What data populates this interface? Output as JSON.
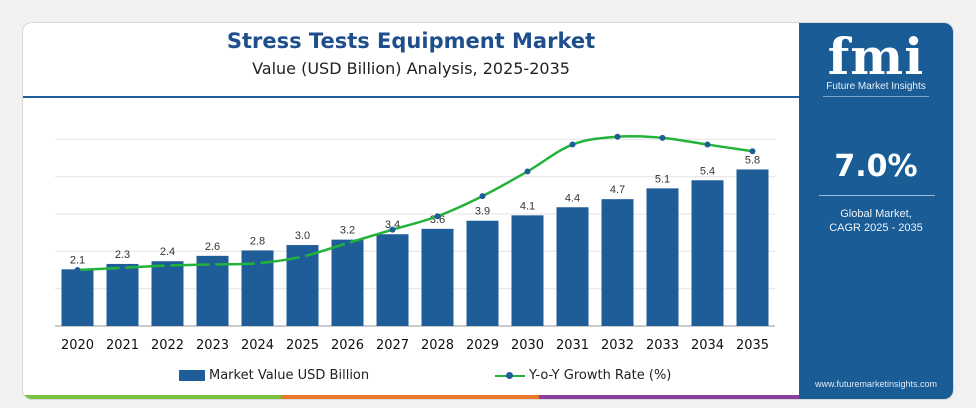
{
  "header": {
    "title": "Stress Tests Equipment Market",
    "subtitle": "Value (USD Billion) Analysis, 2025-2035"
  },
  "sidebar": {
    "logo": "fmi",
    "logo_sub": "Future Market Insights",
    "cagr_value": "7.0%",
    "cagr_label_line1": "Global Market,",
    "cagr_label_line2": "CAGR 2025 - 2035",
    "website": "www.futuremarketinsights.com",
    "color": "#1a5c96"
  },
  "legend": {
    "bar_label": "Market Value USD Billion",
    "line_label": "Y-o-Y Growth Rate (%)"
  },
  "colors": {
    "bar": "#1f5d99",
    "line": "#22b33a",
    "marker": "#1f5d99",
    "bottom_stripes": [
      "#7cc043",
      "#e8792b",
      "#8a3f9a"
    ]
  },
  "chart_data": {
    "type": "bar",
    "categories": [
      "2020",
      "2021",
      "2022",
      "2023",
      "2024",
      "2025",
      "2026",
      "2027",
      "2028",
      "2029",
      "2030",
      "2031",
      "2032",
      "2033",
      "2034",
      "2035"
    ],
    "series": [
      {
        "name": "Market Value USD Billion",
        "type": "bar",
        "values": [
          2.1,
          2.3,
          2.4,
          2.6,
          2.8,
          3.0,
          3.2,
          3.4,
          3.6,
          3.9,
          4.1,
          4.4,
          4.7,
          5.1,
          5.4,
          5.8
        ],
        "labels": [
          "2.1",
          "2.3",
          "2.4",
          "2.6",
          "2.8",
          "3.0",
          "3.2",
          "3.4",
          "3.6",
          "3.9",
          "4.1",
          "4.4",
          "4.7",
          "5.1",
          "5.4",
          "5.8"
        ]
      },
      {
        "name": "Y-o-Y Growth Rate (%)",
        "type": "line",
        "values": [
          5.0,
          5.2,
          5.4,
          5.5,
          5.6,
          6.2,
          7.4,
          8.6,
          9.8,
          11.6,
          13.8,
          16.2,
          16.9,
          16.8,
          16.2,
          15.6
        ]
      }
    ],
    "bar_ylim": [
      0,
      8.3
    ],
    "line_ylim": [
      0,
      20
    ],
    "grid": "horizontal",
    "legend_position": "bottom"
  }
}
